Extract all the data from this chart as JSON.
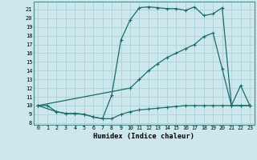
{
  "xlabel": "Humidex (Indice chaleur)",
  "bg_color": "#cde8ec",
  "grid_color": "#b0d4da",
  "line_color": "#1a6b6b",
  "xlim": [
    -0.5,
    23.5
  ],
  "ylim": [
    7.8,
    21.9
  ],
  "yticks": [
    8,
    9,
    10,
    11,
    12,
    13,
    14,
    15,
    16,
    17,
    18,
    19,
    20,
    21
  ],
  "xticks": [
    0,
    1,
    2,
    3,
    4,
    5,
    6,
    7,
    8,
    9,
    10,
    11,
    12,
    13,
    14,
    15,
    16,
    17,
    18,
    19,
    20,
    21,
    22,
    23
  ],
  "line1_x": [
    0,
    1,
    2,
    3,
    4,
    5,
    6,
    7,
    8,
    9,
    10,
    11,
    12,
    13,
    14,
    15,
    16,
    17,
    18,
    19,
    20,
    21,
    22,
    23
  ],
  "line1_y": [
    10,
    10,
    9.3,
    9.1,
    9.1,
    9.0,
    8.7,
    8.5,
    8.5,
    9.0,
    9.3,
    9.5,
    9.6,
    9.7,
    9.8,
    9.9,
    10.0,
    10.0,
    10.0,
    10.0,
    10.0,
    10.0,
    10.0,
    10.0
  ],
  "line2_x": [
    0,
    2,
    3,
    4,
    5,
    6,
    7,
    8,
    9,
    10,
    11,
    12,
    13,
    14,
    15,
    16,
    17,
    18,
    19,
    20,
    21,
    22,
    23
  ],
  "line2_y": [
    10,
    9.3,
    9.1,
    9.1,
    9.0,
    8.7,
    8.5,
    11.2,
    17.5,
    19.8,
    21.2,
    21.3,
    21.2,
    21.1,
    21.1,
    20.9,
    21.3,
    20.3,
    20.5,
    21.2,
    10.0,
    10.0,
    10.0
  ],
  "line3_x": [
    0,
    10,
    11,
    12,
    13,
    14,
    15,
    16,
    17,
    18,
    19,
    20,
    21,
    22,
    23
  ],
  "line3_y": [
    10,
    12.0,
    13.0,
    14.0,
    14.8,
    15.5,
    16.0,
    16.5,
    17.0,
    17.9,
    18.3,
    14.2,
    10.0,
    12.3,
    10.0
  ]
}
